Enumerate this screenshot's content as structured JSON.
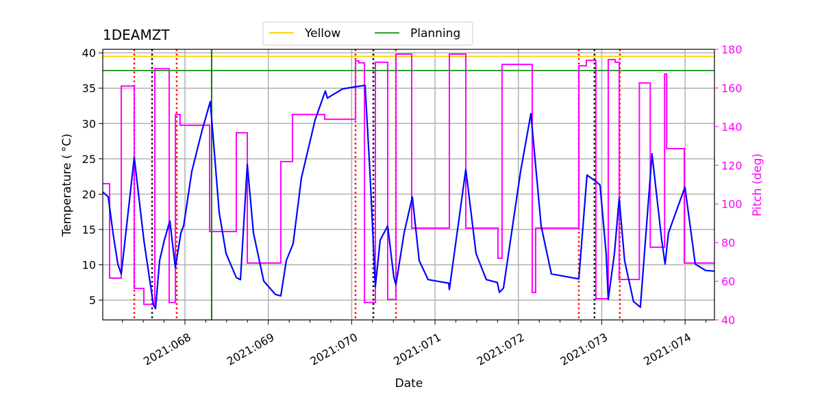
{
  "chart_data": {
    "type": "line",
    "title": "1DEAMZT",
    "xlabel": "Date",
    "ylabel": "Temperature ($^\\circ$C)",
    "ylabel_display": "Temperature ( °C)",
    "y2label": "Pitch (deg)",
    "xlim": [
      67.014,
      74.352
    ],
    "ylim": [
      2.2,
      40.5
    ],
    "y2lim": [
      40,
      180
    ],
    "grid": true,
    "legend_position": "top-center",
    "x_ticks": [
      {
        "value": 68,
        "label": "2021:068"
      },
      {
        "value": 69,
        "label": "2021:069"
      },
      {
        "value": 70,
        "label": "2021:070"
      },
      {
        "value": 71,
        "label": "2021:071"
      },
      {
        "value": 72,
        "label": "2021:072"
      },
      {
        "value": 73,
        "label": "2021:073"
      },
      {
        "value": 74,
        "label": "2021:074"
      }
    ],
    "y_ticks": [
      5,
      10,
      15,
      20,
      25,
      30,
      35,
      40
    ],
    "y2_ticks": [
      40,
      60,
      80,
      100,
      120,
      140,
      160,
      180
    ],
    "limits": [
      {
        "name": "Yellow",
        "value": 39.5,
        "color": "#ffd700"
      },
      {
        "name": "Planning",
        "value": 37.5,
        "color": "#2ca02c"
      }
    ],
    "vlines": {
      "red_dotted": [
        67.392,
        67.901,
        70.046,
        70.531,
        72.725,
        73.217
      ],
      "black_dotted": [
        67.606,
        70.26,
        72.913
      ],
      "green_solid": [
        68.32
      ]
    },
    "colors": {
      "temperature": "#0000ff",
      "pitch": "#ff00ff",
      "red": "#ff0000",
      "black": "#000000",
      "green": "#008000"
    },
    "series": [
      {
        "name": "Temperature",
        "axis": "left",
        "x": [
          67.014,
          67.08,
          67.137,
          67.195,
          67.236,
          67.392,
          67.507,
          67.573,
          67.622,
          67.647,
          67.696,
          67.753,
          67.819,
          67.885,
          67.951,
          67.984,
          68.082,
          68.205,
          68.304,
          68.411,
          68.493,
          68.616,
          68.666,
          68.748,
          68.822,
          68.945,
          69.085,
          69.15,
          69.216,
          69.298,
          69.397,
          69.561,
          69.684,
          69.709,
          69.89,
          70.161,
          70.219,
          70.284,
          70.342,
          70.432,
          70.506,
          70.531,
          70.629,
          70.728,
          70.81,
          70.917,
          71.164,
          71.172,
          71.369,
          71.492,
          71.615,
          71.747,
          71.772,
          71.821,
          72.026,
          72.15,
          72.273,
          72.396,
          72.725,
          72.823,
          72.93,
          72.979,
          73.053,
          73.078,
          73.152,
          73.209,
          73.274,
          73.381,
          73.463,
          73.603,
          73.719,
          73.76,
          73.8,
          73.998,
          74.122,
          74.245,
          74.352
        ],
        "y": [
          20.3,
          19.6,
          14.5,
          10.1,
          8.7,
          25.2,
          13.5,
          8.2,
          4.3,
          3.8,
          10.6,
          13.5,
          16.2,
          9.6,
          14.5,
          15.5,
          23.2,
          29.0,
          33.1,
          17.4,
          11.6,
          8.2,
          7.9,
          24.2,
          14.5,
          7.7,
          5.8,
          5.6,
          10.6,
          13.0,
          22.3,
          30.5,
          34.6,
          33.6,
          34.9,
          35.4,
          23.2,
          6.9,
          13.5,
          15.5,
          8.2,
          7.2,
          14.5,
          19.6,
          10.6,
          7.9,
          7.4,
          6.5,
          23.5,
          11.6,
          7.9,
          7.5,
          6.1,
          6.7,
          23.2,
          31.4,
          15.5,
          8.7,
          8.0,
          22.7,
          21.8,
          21.3,
          11.6,
          5.1,
          11.6,
          19.4,
          10.6,
          4.8,
          4.0,
          25.7,
          13.5,
          10.1,
          14.5,
          21.0,
          10.1,
          9.2,
          9.1
        ]
      },
      {
        "name": "Pitch",
        "axis": "right",
        "drawstyle": "steps-post",
        "x": [
          67.014,
          67.096,
          67.236,
          67.392,
          67.507,
          67.639,
          67.811,
          67.885,
          67.942,
          68.296,
          68.616,
          68.748,
          69.15,
          69.29,
          69.676,
          70.046,
          70.087,
          70.153,
          70.284,
          70.432,
          70.531,
          70.72,
          71.172,
          71.369,
          71.755,
          71.804,
          72.166,
          72.207,
          72.725,
          72.815,
          72.93,
          73.078,
          73.16,
          73.209,
          73.451,
          73.582,
          73.754,
          73.779,
          73.8,
          73.99,
          74.352
        ],
        "y": [
          110.5,
          61.6,
          161,
          56.3,
          48,
          170,
          49,
          146.3,
          140.7,
          85.7,
          136.8,
          69.4,
          121.9,
          146.3,
          143.8,
          174,
          173,
          49,
          173.3,
          50.6,
          177.5,
          87.5,
          177.5,
          87.5,
          71.9,
          172.2,
          54.2,
          87.5,
          171.5,
          174.3,
          51,
          174.7,
          173.3,
          60.9,
          162.6,
          77.6,
          167.2,
          128.6,
          128.6,
          69.4,
          69.4
        ]
      }
    ]
  }
}
